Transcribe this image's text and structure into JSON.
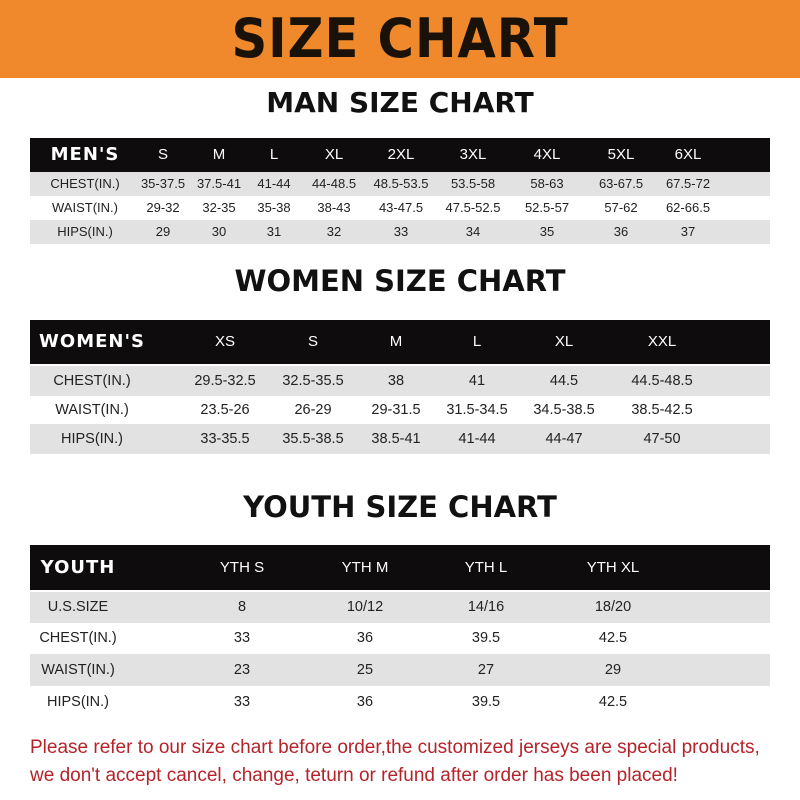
{
  "banner": "SIZE CHART",
  "men": {
    "title": "MAN SIZE CHART",
    "header": [
      "MEN'S",
      "S",
      "M",
      "L",
      "XL",
      "2XL",
      "3XL",
      "4XL",
      "5XL",
      "6XL"
    ],
    "rows": [
      [
        "CHEST(IN.)",
        "35-37.5",
        "37.5-41",
        "41-44",
        "44-48.5",
        "48.5-53.5",
        "53.5-58",
        "58-63",
        "63-67.5",
        "67.5-72"
      ],
      [
        "WAIST(IN.)",
        "29-32",
        "32-35",
        "35-38",
        "38-43",
        "43-47.5",
        "47.5-52.5",
        "52.5-57",
        "57-62",
        "62-66.5"
      ],
      [
        "HIPS(IN.)",
        "29",
        "30",
        "31",
        "32",
        "33",
        "34",
        "35",
        "36",
        "37"
      ]
    ]
  },
  "women": {
    "title": "WOMEN SIZE CHART",
    "header": [
      "WOMEN'S",
      "XS",
      "S",
      "M",
      "L",
      "XL",
      "XXL"
    ],
    "rows": [
      [
        "CHEST(IN.)",
        "29.5-32.5",
        "32.5-35.5",
        "38",
        "41",
        "44.5",
        "44.5-48.5"
      ],
      [
        "WAIST(IN.)",
        "23.5-26",
        "26-29",
        "29-31.5",
        "31.5-34.5",
        "34.5-38.5",
        "38.5-42.5"
      ],
      [
        "HIPS(IN.)",
        "33-35.5",
        "35.5-38.5",
        "38.5-41",
        "41-44",
        "44-47",
        "47-50"
      ]
    ]
  },
  "youth": {
    "title": "YOUTH SIZE CHART",
    "header": [
      "YOUTH",
      "YTH S",
      "YTH M",
      "YTH L",
      "YTH XL"
    ],
    "rows": [
      [
        "U.S.SIZE",
        "8",
        "10/12",
        "14/16",
        "18/20"
      ],
      [
        "CHEST(IN.)",
        "33",
        "36",
        "39.5",
        "42.5"
      ],
      [
        "WAIST(IN.)",
        "23",
        "25",
        "27",
        "29"
      ],
      [
        "HIPS(IN.)",
        "33",
        "36",
        "39.5",
        "42.5"
      ]
    ]
  },
  "notice": [
    "Please refer to our size chart before order,the customized jerseys are special products,",
    "we don't accept cancel, change, teturn or refund after order has been placed!"
  ]
}
